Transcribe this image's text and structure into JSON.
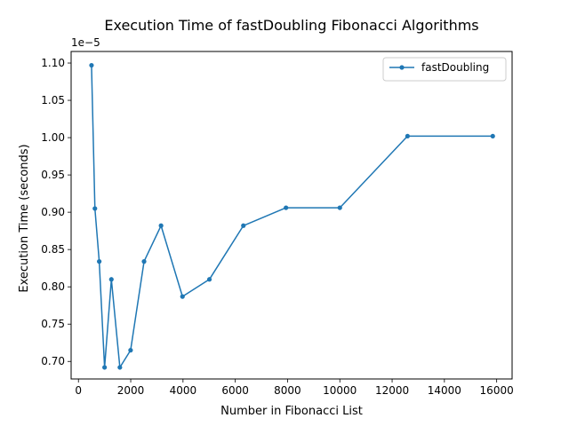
{
  "chart_data": {
    "type": "line",
    "title": "Execution Time of fastDoubling Fibonacci Algorithms",
    "xlabel": "Number in Fibonacci List",
    "ylabel": "Execution Time (seconds)",
    "y_offset_label": "1e−5",
    "xlim": [
      -280,
      16590
    ],
    "ylim": [
      0.6765,
      1.1155
    ],
    "x_ticks": [
      0,
      2000,
      4000,
      6000,
      8000,
      10000,
      12000,
      14000,
      16000
    ],
    "y_ticks": [
      0.7,
      0.75,
      0.8,
      0.85,
      0.9,
      0.95,
      1.0,
      1.05,
      1.1
    ],
    "x_tick_labels": [
      "0",
      "2000",
      "4000",
      "6000",
      "8000",
      "10000",
      "12000",
      "14000",
      "16000"
    ],
    "y_tick_labels": [
      "0.70",
      "0.75",
      "0.80",
      "0.85",
      "0.90",
      "0.95",
      "1.00",
      "1.05",
      "1.10"
    ],
    "grid": false,
    "legend_position": "upper right",
    "series": [
      {
        "name": "fastDoubling",
        "color": "#1f77b4",
        "marker": "circle",
        "x": [
          500,
          630,
          795,
          1000,
          1260,
          1585,
          1995,
          2510,
          3160,
          3980,
          5010,
          6310,
          7940,
          10000,
          12590,
          15850
        ],
        "y": [
          1.097,
          0.905,
          0.834,
          0.692,
          0.81,
          0.692,
          0.715,
          0.834,
          0.882,
          0.787,
          0.81,
          0.882,
          0.906,
          0.906,
          1.002,
          1.002
        ]
      }
    ]
  }
}
